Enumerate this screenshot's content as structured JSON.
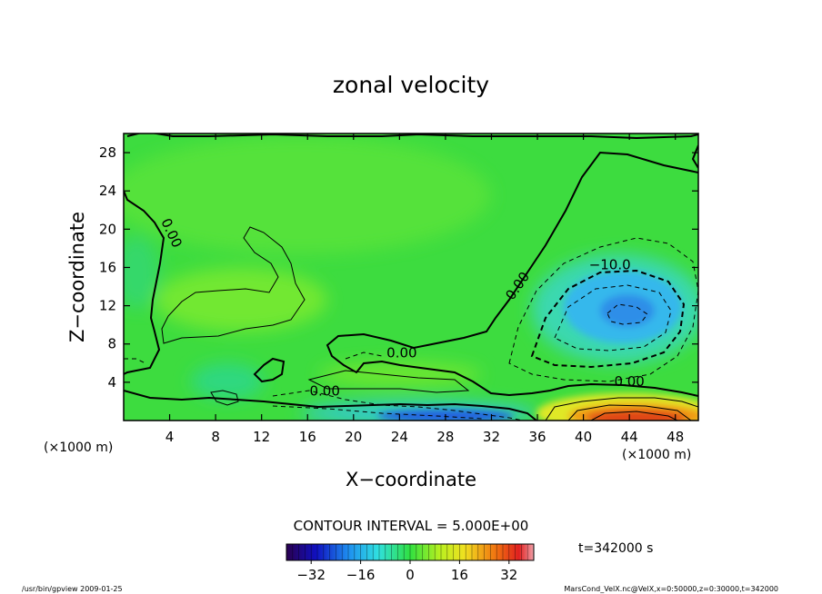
{
  "chart_data": {
    "type": "heatmap",
    "title": "zonal velocity",
    "xlabel": "X−coordinate",
    "ylabel": "Z−coordinate",
    "x_unit": "(×1000 m)",
    "y_unit": "(×1000 m)",
    "xlim": [
      0,
      50
    ],
    "ylim": [
      0,
      30
    ],
    "x_ticks": [
      "4",
      "8",
      "12",
      "16",
      "20",
      "24",
      "28",
      "32",
      "36",
      "40",
      "44",
      "48"
    ],
    "x_tick_values": [
      4,
      8,
      12,
      16,
      20,
      24,
      28,
      32,
      36,
      40,
      44,
      48
    ],
    "y_ticks": [
      "4",
      "8",
      "12",
      "16",
      "20",
      "24",
      "28"
    ],
    "y_tick_values": [
      4,
      8,
      12,
      16,
      20,
      24,
      28
    ],
    "contour_interval_label": "CONTOUR INTERVAL = 5.000E+00",
    "time_label": "t=342000 s",
    "contour_labels": [
      {
        "text": "0.00",
        "x": 3.8,
        "z": 19.4,
        "rotate": 65
      },
      {
        "text": "0.00",
        "x": 34.6,
        "z": 13.8,
        "rotate": -55
      },
      {
        "text": "−10.0",
        "x": 42.3,
        "z": 15.8,
        "rotate": 0
      },
      {
        "text": "0.00",
        "x": 24.2,
        "z": 6.6,
        "rotate": 0
      },
      {
        "text": "0.00",
        "x": 17.5,
        "z": 2.6,
        "rotate": 0
      },
      {
        "text": "0.00",
        "x": 44.0,
        "z": 3.6,
        "rotate": 0
      }
    ],
    "features": [
      {
        "kind": "jet",
        "name": "negative",
        "x": 43.5,
        "z": 11.0,
        "min_value": -20
      },
      {
        "kind": "jet",
        "name": "positive",
        "x": 44.0,
        "z": 1.0,
        "max_value": 30
      },
      {
        "kind": "jet",
        "name": "negative",
        "x": 28.0,
        "z": 0.6,
        "min_value": -18
      }
    ],
    "colorbar": {
      "min": -40,
      "max": 40,
      "tick_labels": [
        "−32",
        "−16",
        "0",
        "16",
        "32"
      ],
      "tick_values": [
        -32,
        -16,
        0,
        16,
        32
      ]
    }
  },
  "footer": {
    "left": "/usr/bin/gpview   2009-01-25",
    "right": "MarsCond_VelX.nc@VelX,x=0:50000,z=0:30000,t=342000"
  }
}
